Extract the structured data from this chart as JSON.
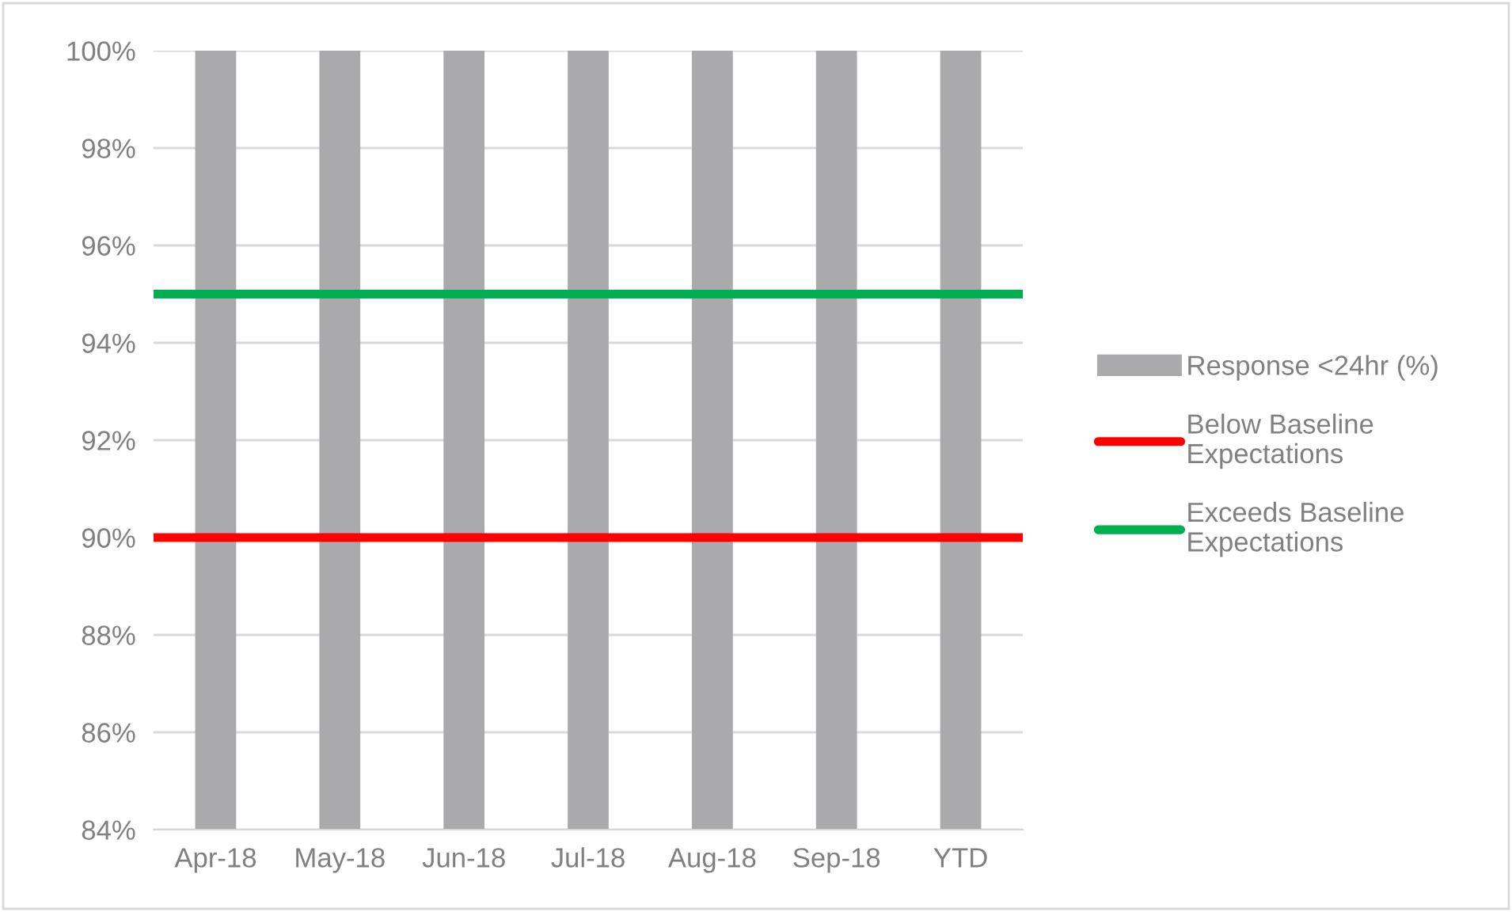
{
  "chart_data": {
    "type": "bar",
    "categories": [
      "Apr-18",
      "May-18",
      "Jun-18",
      "Jul-18",
      "Aug-18",
      "Sep-18",
      "YTD"
    ],
    "series": [
      {
        "name": "Response <24hr (%)",
        "color": "#aaaaac",
        "values": [
          100,
          100,
          100,
          100,
          100,
          100,
          100
        ]
      }
    ],
    "ref_lines": [
      {
        "axis": "y",
        "value": 90,
        "label": "Below Baseline\nExpectations",
        "color": "#ff0000",
        "line_style": "solid"
      },
      {
        "axis": "y",
        "value": 95,
        "label": "Exceeds Baseline\nExpectations",
        "color": "#00b050",
        "line_style": "solid"
      }
    ],
    "ylim": [
      84,
      100
    ],
    "yticks": [
      {
        "value": 84,
        "label": "84%"
      },
      {
        "value": 86,
        "label": "86%"
      },
      {
        "value": 88,
        "label": "88%"
      },
      {
        "value": 90,
        "label": "90%"
      },
      {
        "value": 92,
        "label": "92%"
      },
      {
        "value": 94,
        "label": "94%"
      },
      {
        "value": 96,
        "label": "96%"
      },
      {
        "value": 98,
        "label": "98%"
      },
      {
        "value": 100,
        "label": "100%"
      }
    ],
    "grid": "y",
    "legend": "right"
  }
}
